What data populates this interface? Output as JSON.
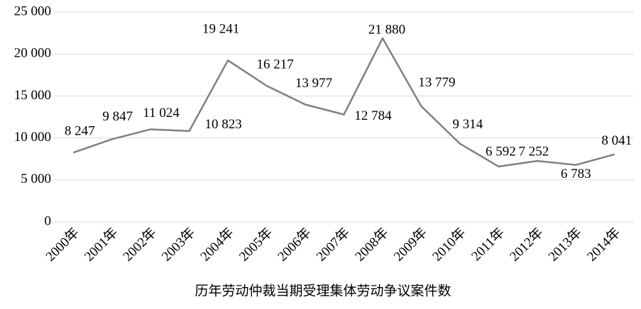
{
  "chart_data": {
    "type": "line",
    "x_label": "历年劳动仲裁当期受理集体劳动争议案件数",
    "categories": [
      "2000年",
      "2001年",
      "2002年",
      "2003年",
      "2004年",
      "2005年",
      "2006年",
      "2007年",
      "2008年",
      "2009年",
      "2010年",
      "2011年",
      "2012年",
      "2013年",
      "2014年"
    ],
    "series": [
      {
        "color": "#808080",
        "values": [
          8247,
          9847,
          11024,
          10823,
          19241,
          16217,
          13977,
          12784,
          21880,
          13779,
          9314,
          6592,
          7252,
          6783,
          8041
        ],
        "value_labels": [
          "8 247",
          "9 847",
          "11 024",
          "10 823",
          "19 241",
          "16 217",
          "13 977",
          "12 784",
          "21 880",
          "13 779",
          "9 314",
          "6 592",
          "7 252",
          "6 783",
          "8 041"
        ]
      }
    ],
    "ylim": [
      0,
      25000
    ],
    "yticks": [
      0,
      {
        "value": 5000,
        "label": "5 000"
      },
      {
        "value": 10000,
        "label": "10 000"
      },
      {
        "value": 15000,
        "label": "15 000"
      },
      {
        "value": 20000,
        "label": "20 000"
      },
      {
        "value": 25000,
        "label": "25 000"
      }
    ],
    "grid": true
  }
}
